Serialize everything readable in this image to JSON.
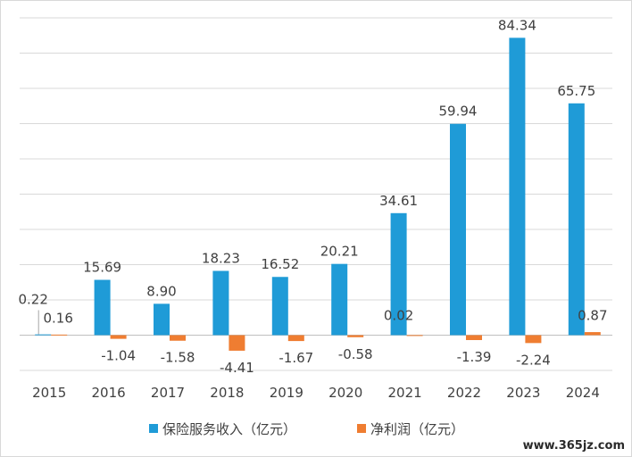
{
  "chart_data": {
    "type": "bar",
    "categories": [
      "2015",
      "2016",
      "2017",
      "2018",
      "2019",
      "2020",
      "2021",
      "2022",
      "2023",
      "2024"
    ],
    "series": [
      {
        "name": "保险服务收入（亿元）",
        "color": "#1f9bd7",
        "values": [
          0.22,
          15.69,
          8.9,
          18.23,
          16.52,
          20.21,
          34.61,
          59.94,
          84.34,
          65.75
        ],
        "labels": [
          "0.22",
          "15.69",
          "8.90",
          "18.23",
          "16.52",
          "20.21",
          "34.61",
          "59.94",
          "84.34",
          "65.75"
        ]
      },
      {
        "name": "净利润（亿元）",
        "color": "#ef7d31",
        "values": [
          0.16,
          -1.04,
          -1.58,
          -4.41,
          -1.67,
          -0.58,
          0.02,
          -1.39,
          -2.24,
          0.87
        ],
        "labels": [
          "0.16",
          "-1.04",
          "-1.58",
          "-4.41",
          "-1.67",
          "-0.58",
          "0.02",
          "-1.39",
          "-2.24",
          "0.87"
        ]
      }
    ],
    "ylim": [
      -10,
      90
    ],
    "grid": true,
    "legend": "bottom"
  },
  "watermark": "www.365jz.com"
}
